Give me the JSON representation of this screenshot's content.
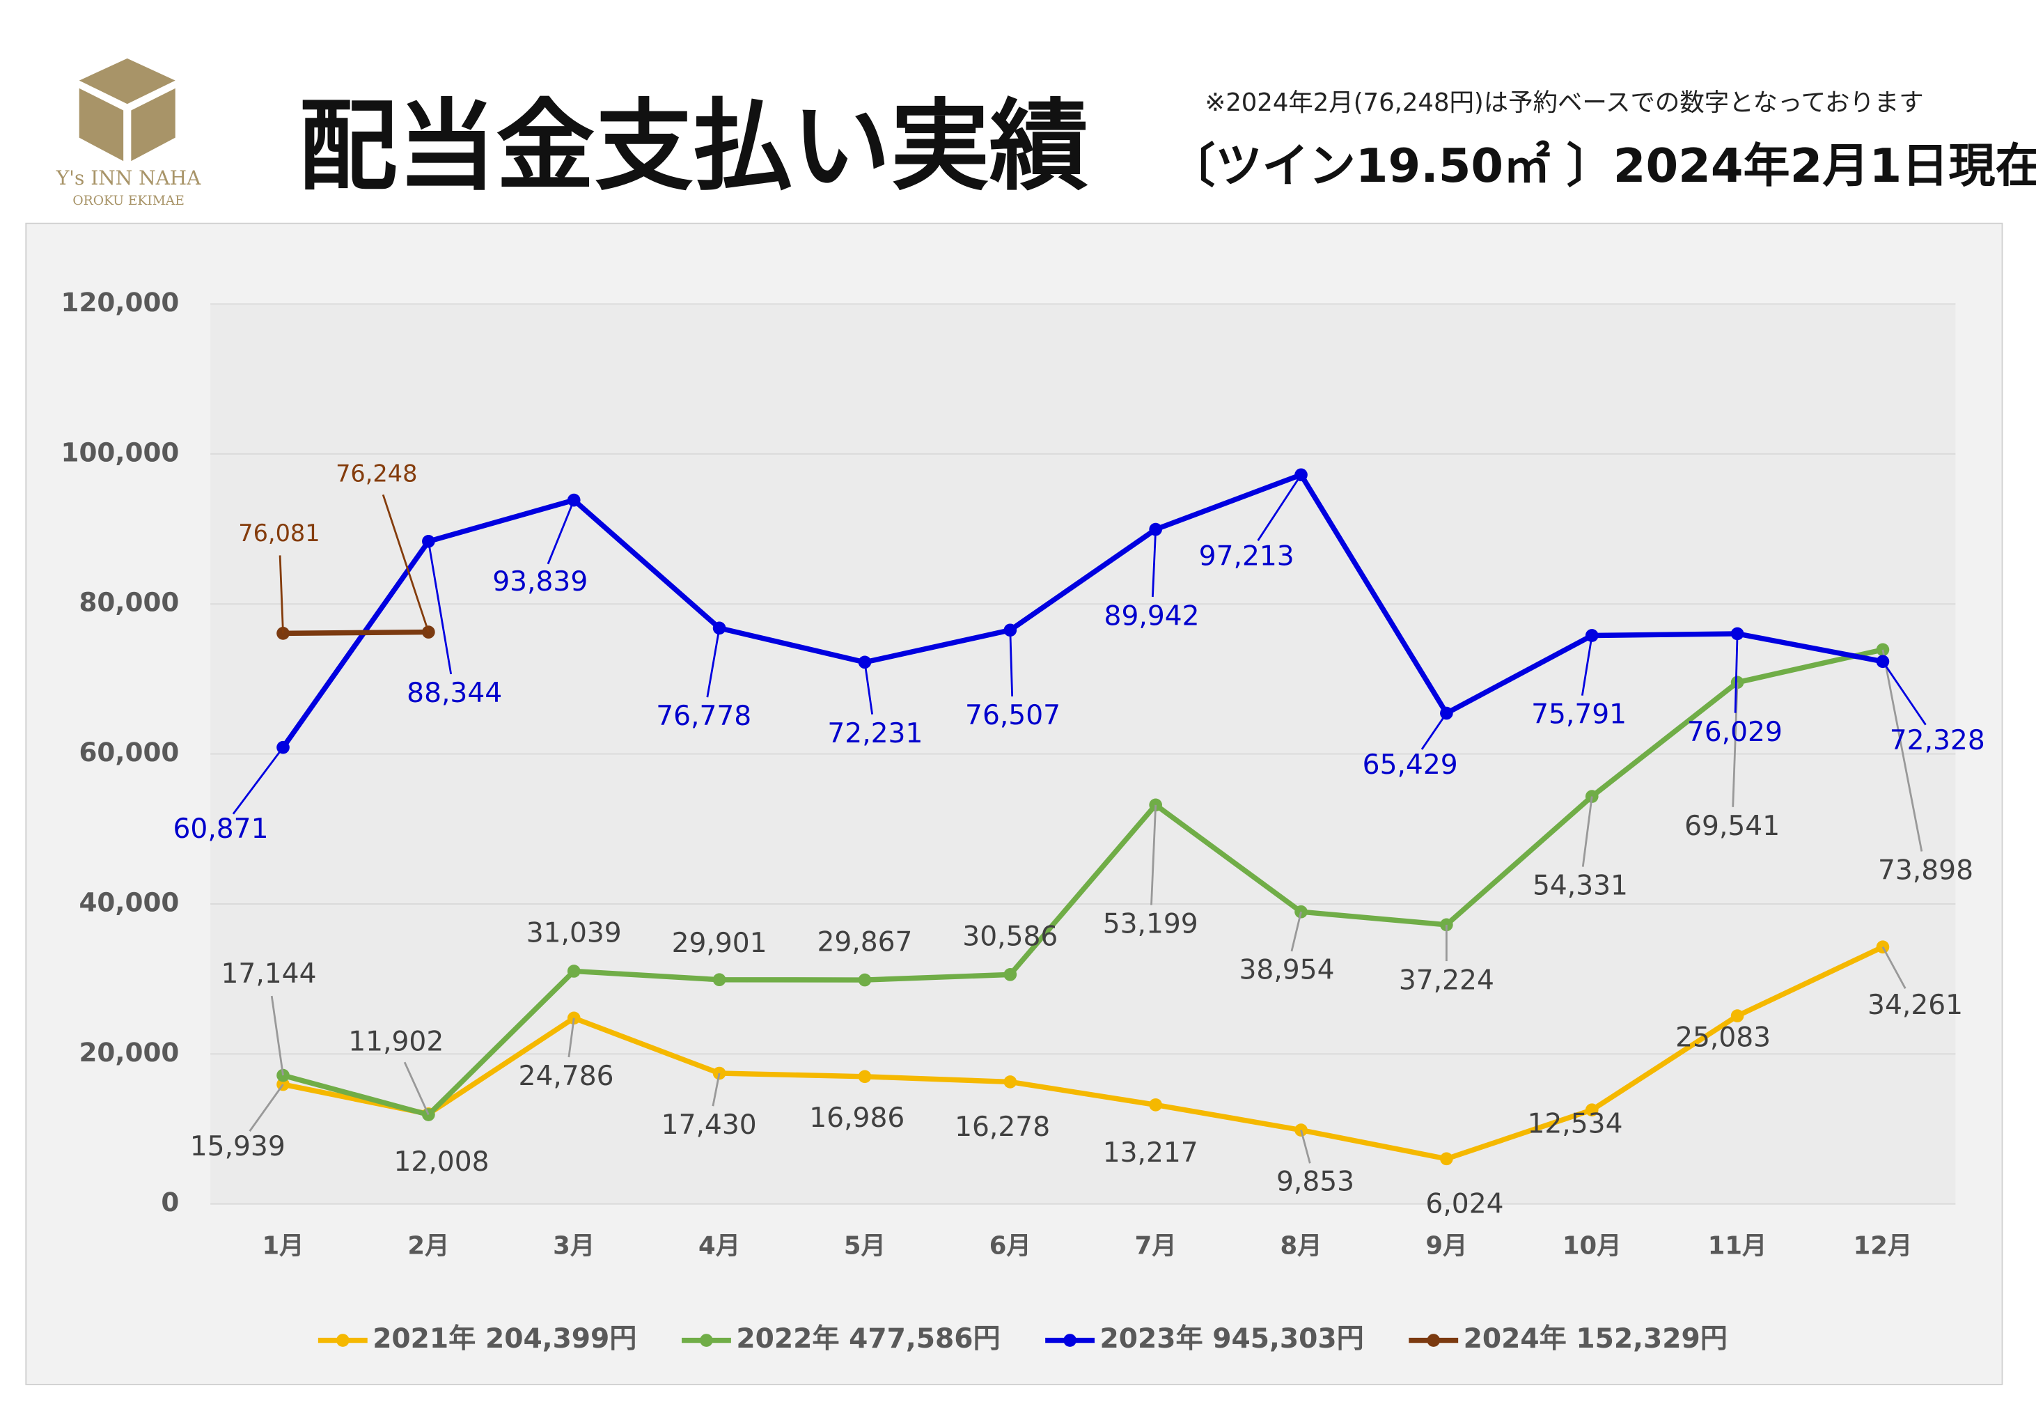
{
  "header": {
    "logo": "Y's INN NAHA",
    "logo_sub": "OROKU EKIMAE",
    "note": "※2024年2月(76,248円)は予約ベースでの数字となっております"
  },
  "chart_data": {
    "type": "line",
    "title": "配当金支払い実績",
    "subtitle": "〔ツイン19.50㎡ 〕2024年2月1日現在",
    "categories": [
      "1月",
      "2月",
      "3月",
      "4月",
      "5月",
      "6月",
      "7月",
      "8月",
      "9月",
      "10月",
      "11月",
      "12月"
    ],
    "ylim": [
      0,
      120000
    ],
    "yticks": [
      0,
      {
        "value": 20000,
        "label": "20,000"
      },
      {
        "value": 40000,
        "label": "40,000"
      },
      {
        "value": 60000,
        "label": "60,000"
      },
      {
        "value": 80000,
        "label": "80,000"
      },
      {
        "value": 100000,
        "label": "100,000"
      },
      {
        "value": 120000,
        "label": "120,000"
      }
    ],
    "grid": true,
    "legend": "bottom",
    "series": [
      {
        "name": "2021年 204,399円",
        "color": "#f5b800",
        "values": [
          15939,
          12008,
          24786,
          17430,
          16986,
          16278,
          13217,
          9853,
          6024,
          12534,
          25083,
          34261
        ],
        "value_labels": [
          "15,939",
          "12,008",
          "24,786",
          "17,430",
          "16,986",
          "16,278",
          "13,217",
          "9,853",
          "6,024",
          "12,534",
          "25,083",
          "34,261"
        ]
      },
      {
        "name": "2022年 477,586円",
        "color": "#70ad47",
        "values": [
          17144,
          11902,
          31039,
          29901,
          29867,
          30586,
          53199,
          38954,
          37224,
          54331,
          69541,
          73898
        ],
        "value_labels": [
          "17,144",
          "11,902",
          "31,039",
          "29,901",
          "29,867",
          "30,586",
          "53,199",
          "38,954",
          "37,224",
          "54,331",
          "69,541",
          "73,898"
        ]
      },
      {
        "name": "2023年 945,303円",
        "color": "#0000e0",
        "values": [
          60871,
          88344,
          93839,
          76778,
          72231,
          76507,
          89942,
          97213,
          65429,
          75791,
          76029,
          72328
        ],
        "value_labels": [
          "60,871",
          "88,344",
          "93,839",
          "76,778",
          "72,231",
          "76,507",
          "89,942",
          "97,213",
          "65,429",
          "75,791",
          "76,029",
          "72,328"
        ]
      },
      {
        "name": "2024年 152,329円",
        "color": "#7b3a10",
        "values": [
          76081,
          76248,
          null,
          null,
          null,
          null,
          null,
          null,
          null,
          null,
          null,
          null
        ],
        "value_labels": [
          "76,081",
          "76,248",
          null,
          null,
          null,
          null,
          null,
          null,
          null,
          null,
          null,
          null
        ]
      }
    ]
  }
}
